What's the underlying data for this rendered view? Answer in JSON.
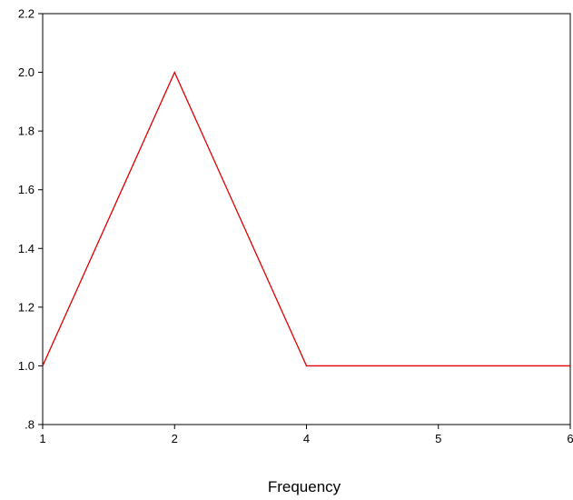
{
  "chart_data": {
    "type": "line",
    "title": "",
    "xlabel": "Frequency",
    "ylabel": "",
    "x_tick_labels": [
      "1",
      "2",
      "4",
      "5",
      "6"
    ],
    "y_ticks": [
      {
        "value": 0.8,
        "label": ".8"
      },
      {
        "value": 1.0,
        "label": "1.0"
      },
      {
        "value": 1.2,
        "label": "1.2"
      },
      {
        "value": 1.4,
        "label": "1.4"
      },
      {
        "value": 1.6,
        "label": "1.6"
      },
      {
        "value": 1.8,
        "label": "1.8"
      },
      {
        "value": 2.0,
        "label": "2.0"
      },
      {
        "value": 2.2,
        "label": "2.2"
      }
    ],
    "ylim": [
      0.8,
      2.2
    ],
    "grid": false,
    "series": [
      {
        "color": "#e00000",
        "values": [
          1,
          2,
          1,
          1,
          1
        ]
      }
    ]
  }
}
